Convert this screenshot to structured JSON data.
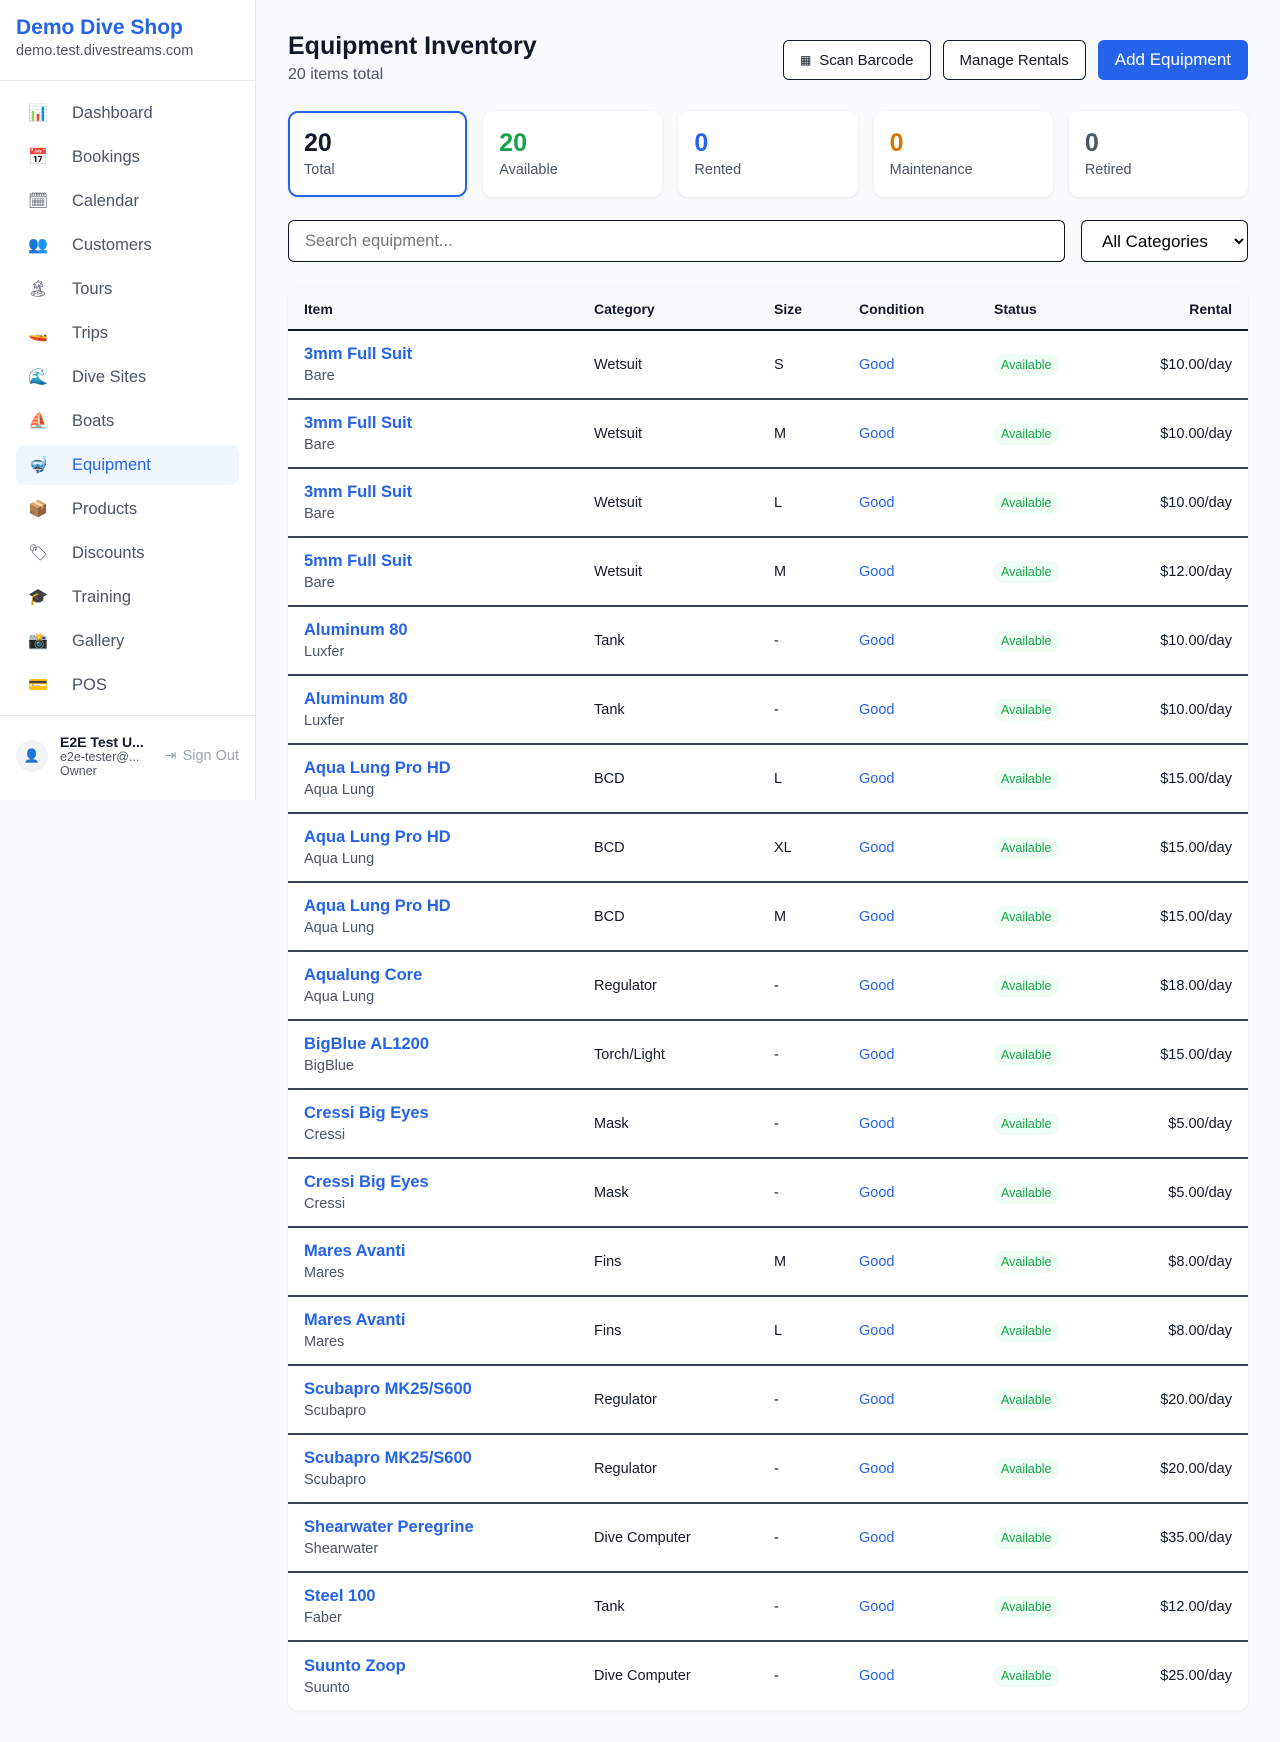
{
  "sidebar": {
    "brand": "Demo Dive Shop",
    "domain": "demo.test.divestreams.com",
    "items": [
      {
        "label": "Dashboard",
        "icon": "📊"
      },
      {
        "label": "Bookings",
        "icon": "📅"
      },
      {
        "label": "Calendar",
        "icon": "🗓"
      },
      {
        "label": "Customers",
        "icon": "👥"
      },
      {
        "label": "Tours",
        "icon": "🏝"
      },
      {
        "label": "Trips",
        "icon": "🚤"
      },
      {
        "label": "Dive Sites",
        "icon": "🌊"
      },
      {
        "label": "Boats",
        "icon": "⛵"
      },
      {
        "label": "Equipment",
        "icon": "🤿",
        "active": true
      },
      {
        "label": "Products",
        "icon": "📦"
      },
      {
        "label": "Discounts",
        "icon": "🏷"
      },
      {
        "label": "Training",
        "icon": "🎓"
      },
      {
        "label": "Gallery",
        "icon": "📸"
      },
      {
        "label": "POS",
        "icon": "💳"
      }
    ],
    "user": {
      "name": "E2E Test U...",
      "email": "e2e-tester@...",
      "role": "Owner",
      "sign_out": "Sign Out"
    }
  },
  "header": {
    "title": "Equipment Inventory",
    "subtitle": "20 items total",
    "scan": "Scan Barcode",
    "manage": "Manage Rentals",
    "add": "Add Equipment"
  },
  "stats": [
    {
      "value": "20",
      "label": "Total",
      "color": "#111827"
    },
    {
      "value": "20",
      "label": "Available",
      "color": "#16a34a"
    },
    {
      "value": "0",
      "label": "Rented",
      "color": "#2563eb"
    },
    {
      "value": "0",
      "label": "Maintenance",
      "color": "#d97706"
    },
    {
      "value": "0",
      "label": "Retired",
      "color": "#4b5563"
    }
  ],
  "filters": {
    "search_placeholder": "Search equipment...",
    "category": "All Categories"
  },
  "table": {
    "columns": [
      "Item",
      "Category",
      "Size",
      "Condition",
      "Status",
      "Rental"
    ],
    "rows": [
      [
        "3mm Full Suit",
        "Bare",
        "Wetsuit",
        "S",
        "Good",
        "Available",
        "$10.00/day"
      ],
      [
        "3mm Full Suit",
        "Bare",
        "Wetsuit",
        "M",
        "Good",
        "Available",
        "$10.00/day"
      ],
      [
        "3mm Full Suit",
        "Bare",
        "Wetsuit",
        "L",
        "Good",
        "Available",
        "$10.00/day"
      ],
      [
        "5mm Full Suit",
        "Bare",
        "Wetsuit",
        "M",
        "Good",
        "Available",
        "$12.00/day"
      ],
      [
        "Aluminum 80",
        "Luxfer",
        "Tank",
        "-",
        "Good",
        "Available",
        "$10.00/day"
      ],
      [
        "Aluminum 80",
        "Luxfer",
        "Tank",
        "-",
        "Good",
        "Available",
        "$10.00/day"
      ],
      [
        "Aqua Lung Pro HD",
        "Aqua Lung",
        "BCD",
        "L",
        "Good",
        "Available",
        "$15.00/day"
      ],
      [
        "Aqua Lung Pro HD",
        "Aqua Lung",
        "BCD",
        "XL",
        "Good",
        "Available",
        "$15.00/day"
      ],
      [
        "Aqua Lung Pro HD",
        "Aqua Lung",
        "BCD",
        "M",
        "Good",
        "Available",
        "$15.00/day"
      ],
      [
        "Aqualung Core",
        "Aqua Lung",
        "Regulator",
        "-",
        "Good",
        "Available",
        "$18.00/day"
      ],
      [
        "BigBlue AL1200",
        "BigBlue",
        "Torch/Light",
        "-",
        "Good",
        "Available",
        "$15.00/day"
      ],
      [
        "Cressi Big Eyes",
        "Cressi",
        "Mask",
        "-",
        "Good",
        "Available",
        "$5.00/day"
      ],
      [
        "Cressi Big Eyes",
        "Cressi",
        "Mask",
        "-",
        "Good",
        "Available",
        "$5.00/day"
      ],
      [
        "Mares Avanti",
        "Mares",
        "Fins",
        "M",
        "Good",
        "Available",
        "$8.00/day"
      ],
      [
        "Mares Avanti",
        "Mares",
        "Fins",
        "L",
        "Good",
        "Available",
        "$8.00/day"
      ],
      [
        "Scubapro MK25/S600",
        "Scubapro",
        "Regulator",
        "-",
        "Good",
        "Available",
        "$20.00/day"
      ],
      [
        "Scubapro MK25/S600",
        "Scubapro",
        "Regulator",
        "-",
        "Good",
        "Available",
        "$20.00/day"
      ],
      [
        "Shearwater Peregrine",
        "Shearwater",
        "Dive Computer",
        "-",
        "Good",
        "Available",
        "$35.00/day"
      ],
      [
        "Steel 100",
        "Faber",
        "Tank",
        "-",
        "Good",
        "Available",
        "$12.00/day"
      ],
      [
        "Suunto Zoop",
        "Suunto",
        "Dive Computer",
        "-",
        "Good",
        "Available",
        "$25.00/day"
      ]
    ]
  }
}
